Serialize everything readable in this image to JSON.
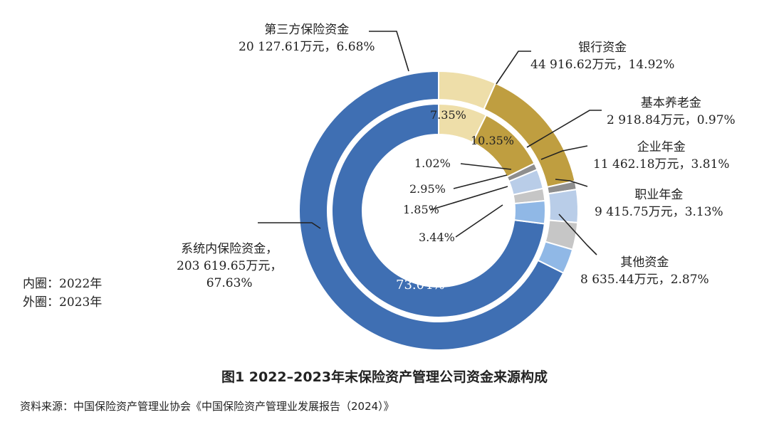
{
  "chart_data": {
    "type": "pie",
    "subtype": "double-donut",
    "title": "图1 2022–2023年末保险资产管理公司资金来源构成",
    "legend": [
      "内圈：2022年",
      "外圈：2023年"
    ],
    "source": "资料来源：中国保险资产管理业协会《中国保险资产管理业发展报告（2024）》",
    "categories": [
      "系统内保险资金",
      "第三方保险资金",
      "银行资金",
      "基本养老金",
      "企业年金",
      "职业年金",
      "其他资金"
    ],
    "colors": [
      "#3f6fb3",
      "#eedea9",
      "#bf9e40",
      "#8e8e8e",
      "#b9cde8",
      "#c6c6c6",
      "#90b8e6"
    ],
    "series": [
      {
        "name": "2023年",
        "ring": "outer",
        "values": [
          67.63,
          6.68,
          14.92,
          0.97,
          3.81,
          3.13,
          2.87
        ],
        "amounts": [
          "203 619.65万元",
          "20 127.61万元",
          "44 916.62万元",
          "2 918.84万元",
          "11 462.18万元",
          "9 415.75万元",
          "8 635.44万元"
        ],
        "labels": [
          "67.63%",
          "6.68%",
          "14.92%",
          "0.97%",
          "3.81%",
          "3.13%",
          "2.87%"
        ]
      },
      {
        "name": "2022年",
        "ring": "inner",
        "values": [
          73.04,
          7.35,
          10.35,
          1.02,
          2.95,
          1.85,
          3.44
        ],
        "labels": [
          "73.04%",
          "7.35%",
          "10.35%",
          "1.02%",
          "2.95%",
          "1.85%",
          "3.44%"
        ]
      }
    ]
  }
}
